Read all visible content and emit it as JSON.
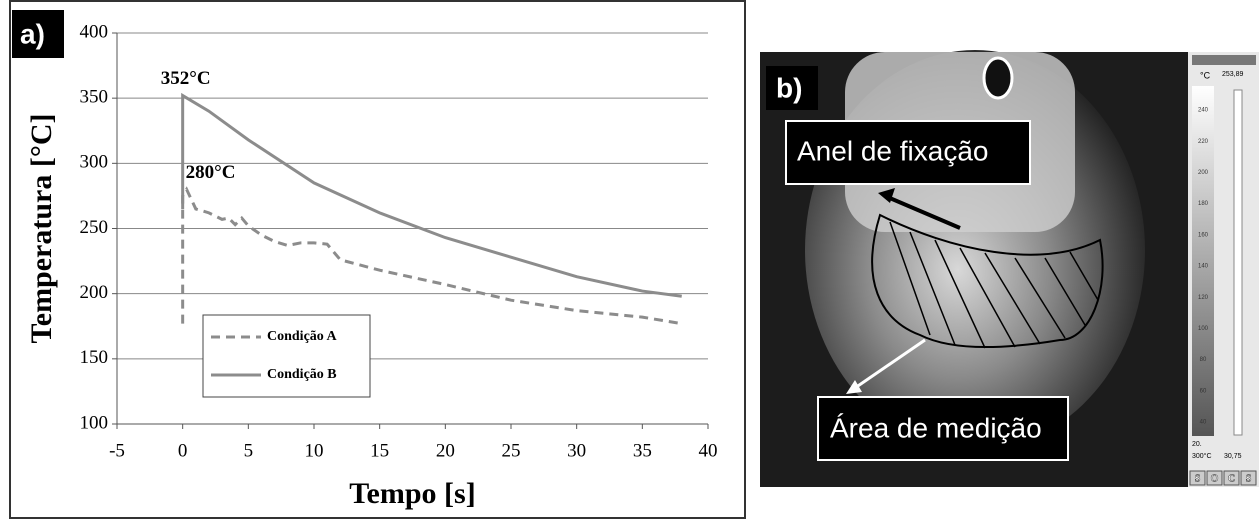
{
  "chart_data": {
    "type": "line",
    "panel_label": "a)",
    "xlabel": "Tempo [s]",
    "ylabel": "Temperatura [°C]",
    "xlim": [
      -5,
      40
    ],
    "xticks": [
      -5,
      0,
      5,
      10,
      15,
      20,
      25,
      30,
      35,
      40
    ],
    "ylim": [
      100,
      400
    ],
    "yticks": [
      100,
      150,
      200,
      250,
      300,
      350,
      400
    ],
    "grid": true,
    "legend": "lower left",
    "series": [
      {
        "name": "Condição A",
        "color": "#8c8c8c",
        "dashed": true,
        "x": [
          0,
          0,
          0.3,
          1,
          2,
          3,
          3.5,
          4,
          4.5,
          5,
          6,
          7,
          8,
          9,
          10,
          11,
          12,
          15,
          20,
          25,
          30,
          35,
          38
        ],
        "values": [
          177,
          275,
          280,
          265,
          262,
          257,
          258,
          253,
          258,
          252,
          245,
          240,
          237,
          239,
          239,
          238,
          226,
          218,
          207,
          195,
          187,
          182,
          177
        ]
      },
      {
        "name": "Condição B",
        "color": "#8c8c8c",
        "dashed": false,
        "x": [
          0,
          0,
          2,
          5,
          10,
          15,
          20,
          25,
          30,
          35,
          38
        ],
        "values": [
          265,
          352,
          340,
          318,
          285,
          262,
          243,
          228,
          213,
          202,
          198
        ]
      }
    ],
    "annotations": [
      {
        "text": "352°C",
        "x": 0,
        "y": 352
      },
      {
        "text": "280°C",
        "x": 0,
        "y": 280
      }
    ]
  },
  "panel_b": {
    "panel_label": "b)",
    "label_top": "Anel de fixação",
    "label_bottom": "Área de medição",
    "scale_unit": "°C",
    "scale_max": "253,89",
    "scale_ticks": [
      "240",
      "220",
      "200",
      "180",
      "160",
      "140",
      "120",
      "100",
      "80",
      "60",
      "40"
    ],
    "scale_low": "20.",
    "scale_range": "300°C",
    "scale_min": "30,75",
    "buttons": [
      "S",
      "O",
      "C",
      "S"
    ]
  }
}
